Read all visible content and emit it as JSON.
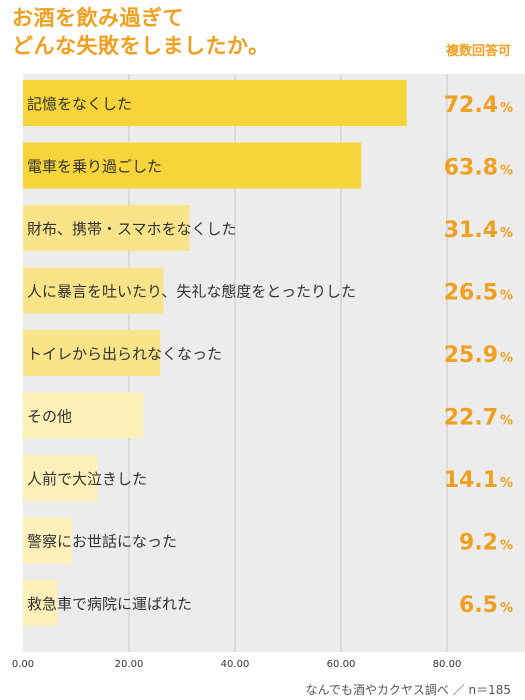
{
  "title": {
    "line1": "お酒を飲み過ぎて",
    "line2": "どんな失敗をしましたか。"
  },
  "note": "複数回答可",
  "source": "なんでも酒やカクヤス調べ ／ n＝185",
  "colors": {
    "accent": "#f0a020",
    "bar_top": "#f7d43a",
    "bar_mid": "#f9e48a",
    "bar_low": "#fdf0b8",
    "panel": "#ececec",
    "grid": "#c8c8c8",
    "text": "#333333"
  },
  "chart_data": {
    "type": "bar",
    "orientation": "horizontal",
    "categories": [
      "記憶をなくした",
      "電車を乗り過ごした",
      "財布、携帯・スマホをなくした",
      "人に暴言を吐いたり、失礼な態度をとったりした",
      "トイレから出られなくなった",
      "その他",
      "人前で大泣きした",
      "警察にお世話になった",
      "救急車で病院に運ばれた"
    ],
    "values": [
      72.4,
      63.8,
      31.4,
      26.5,
      25.9,
      22.7,
      14.1,
      9.2,
      6.5
    ],
    "value_labels": [
      "72.4",
      "63.8",
      "31.4",
      "26.5",
      "25.9",
      "22.7",
      "14.1",
      "9.2",
      "6.5"
    ],
    "value_unit": "%",
    "xlim": [
      0,
      80
    ],
    "xticks": [
      "0.00",
      "20.00",
      "40.00",
      "60.00",
      "80.00"
    ],
    "grid": true
  }
}
